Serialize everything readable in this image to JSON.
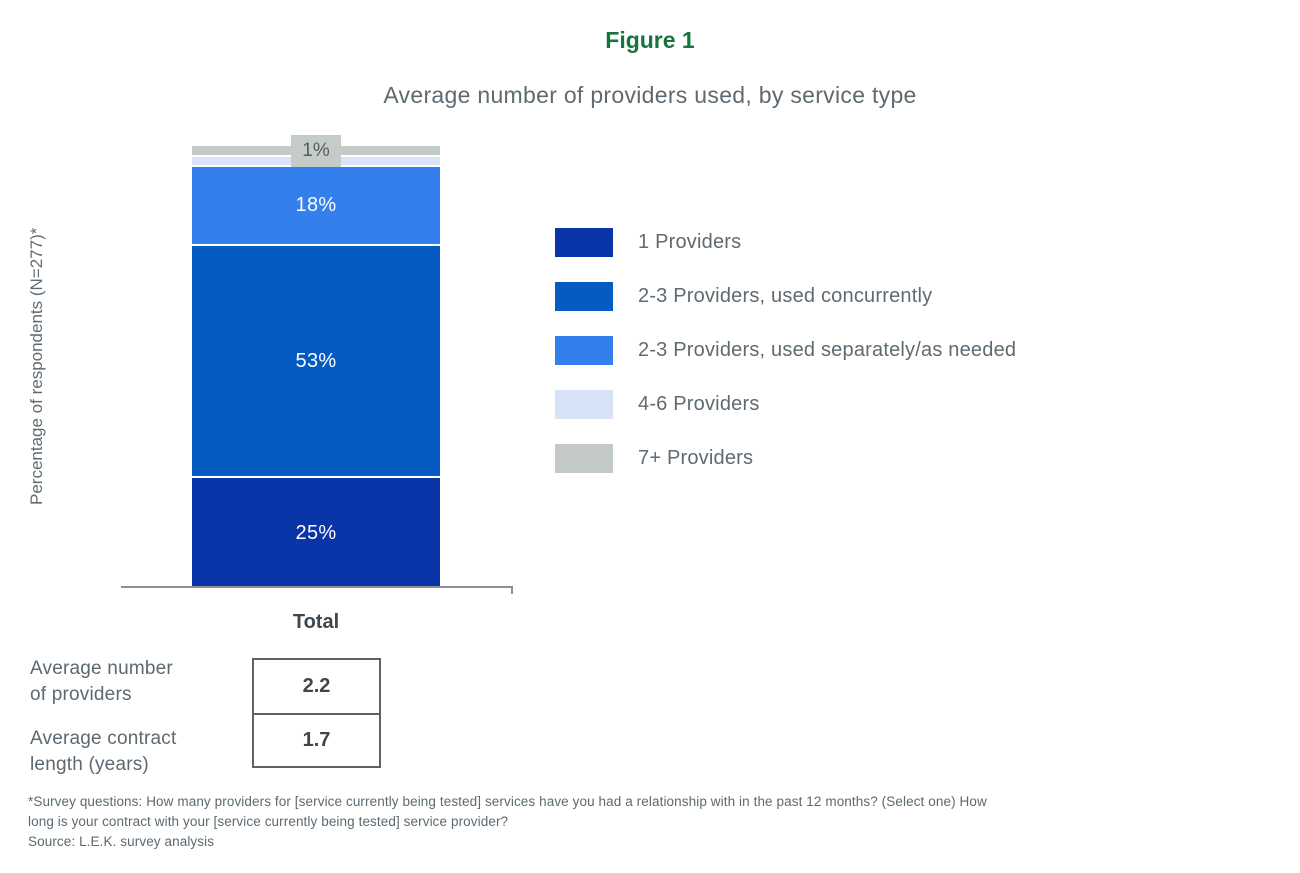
{
  "figure": {
    "label": "Figure 1",
    "title": "Average number of providers used, by service type"
  },
  "chart_data": {
    "type": "bar",
    "stacked": true,
    "categories": [
      "Total"
    ],
    "series": [
      {
        "name": "1 Providers",
        "values": [
          25
        ],
        "label": "25%",
        "color": "#0a35a8"
      },
      {
        "name": "2-3 Providers, used concurrently",
        "values": [
          53
        ],
        "label": "53%",
        "color": "#065bc3"
      },
      {
        "name": "2-3 Providers, used separately/as needed",
        "values": [
          18
        ],
        "label": "18%",
        "color": "#3380ec"
      },
      {
        "name": "4-6 Providers",
        "values": [
          2
        ],
        "label": "",
        "color": "#d7e3f7"
      },
      {
        "name": "7+ Providers",
        "values": [
          1
        ],
        "label": "1%",
        "color": "#c3c9c6"
      }
    ],
    "ylabel": "Percentage of respondents (N=277)*",
    "xlabel": "",
    "ylim": [
      0,
      100
    ],
    "legend_position": "right",
    "grid": false,
    "label_box_color": "#c5cbc8",
    "accent_color": "#16743f"
  },
  "table": {
    "rows": [
      {
        "label_line1": "Average number",
        "label_line2": "of providers",
        "value": "2.2"
      },
      {
        "label_line1": "Average contract",
        "label_line2": "length (years)",
        "value": "1.7"
      }
    ]
  },
  "footnote": {
    "lines": [
      "*Survey questions: How many providers for [service currently being tested] services have you had a relationship with in the past 12 months? (Select one) How",
      "long is your contract with your [service currently being tested] service provider?",
      "Source: L.E.K. survey analysis"
    ]
  }
}
